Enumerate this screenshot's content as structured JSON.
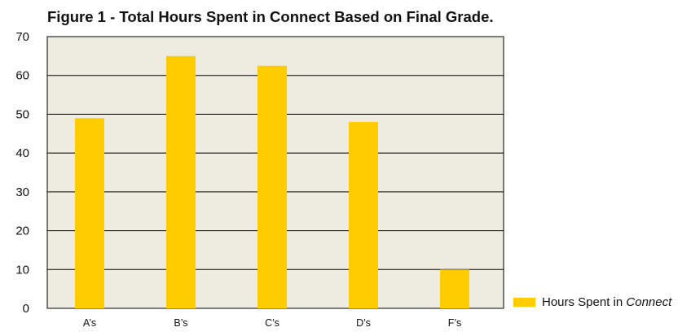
{
  "chart_data": {
    "type": "bar",
    "title": "Figure 1 - Total Hours Spent in Connect Based on Final Grade.",
    "categories": [
      "A’s",
      "B’s",
      "C’s",
      "D’s",
      "F’s"
    ],
    "series": [
      {
        "name_prefix": "Hours Spent in ",
        "name_emphasis": "Connect",
        "values": [
          49,
          65,
          62.5,
          48,
          10
        ]
      }
    ],
    "ylim": [
      0,
      70
    ],
    "yticks": [
      0,
      10,
      20,
      30,
      40,
      50,
      60,
      70
    ],
    "xlabel": "",
    "ylabel": "",
    "grid": true,
    "legend_position": "bottom-right",
    "colors": {
      "bar": "#FFCC00",
      "plot_background": "#EEEBE0",
      "grid": "#000000"
    }
  }
}
